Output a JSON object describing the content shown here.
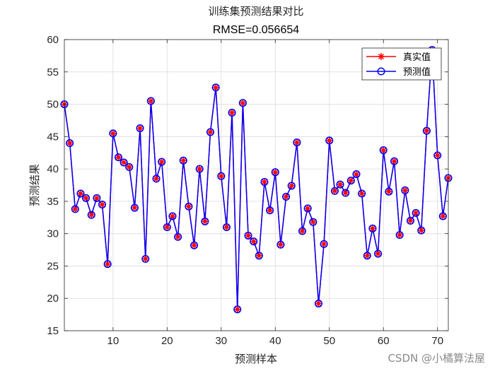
{
  "chart_data": {
    "type": "line",
    "title": "训练集预测结果对比",
    "subtitle": "RMSE=0.056654",
    "xlabel": "预测样本",
    "ylabel": "预测结果",
    "xlim": [
      1,
      72
    ],
    "ylim": [
      15,
      60
    ],
    "xticks": [
      10,
      20,
      30,
      40,
      50,
      60,
      70
    ],
    "yticks": [
      15,
      20,
      25,
      30,
      35,
      40,
      45,
      50,
      55,
      60
    ],
    "grid": true,
    "legend_position": "top-right",
    "x": [
      1,
      2,
      3,
      4,
      5,
      6,
      7,
      8,
      9,
      10,
      11,
      12,
      13,
      14,
      15,
      16,
      17,
      18,
      19,
      20,
      21,
      22,
      23,
      24,
      25,
      26,
      27,
      28,
      29,
      30,
      31,
      32,
      33,
      34,
      35,
      36,
      37,
      38,
      39,
      40,
      41,
      42,
      43,
      44,
      45,
      46,
      47,
      48,
      49,
      50,
      51,
      52,
      53,
      54,
      55,
      56,
      57,
      58,
      59,
      60,
      61,
      62,
      63,
      64,
      65,
      66,
      67,
      68,
      69,
      70,
      71,
      72
    ],
    "series": [
      {
        "name": "真实值",
        "color": "#ff0000",
        "marker": "asterisk",
        "values": [
          50.0,
          44.0,
          33.8,
          36.2,
          35.5,
          32.9,
          35.5,
          34.5,
          25.3,
          45.5,
          41.8,
          41.0,
          40.3,
          34.0,
          46.3,
          26.1,
          50.5,
          38.5,
          41.1,
          31.0,
          32.7,
          29.5,
          41.3,
          34.2,
          28.2,
          40.0,
          31.9,
          45.7,
          52.6,
          38.9,
          31.0,
          48.7,
          18.3,
          50.2,
          29.7,
          28.8,
          26.6,
          38.0,
          33.6,
          39.5,
          28.3,
          35.7,
          37.4,
          44.1,
          30.4,
          33.9,
          31.8,
          19.2,
          28.4,
          44.4,
          36.6,
          37.6,
          36.3,
          38.2,
          39.2,
          36.2,
          26.6,
          30.8,
          26.9,
          42.9,
          36.5,
          41.2,
          29.8,
          36.7,
          32.0,
          33.2,
          30.5,
          45.9,
          58.4,
          42.1,
          32.7,
          38.6
        ]
      },
      {
        "name": "预测值",
        "color": "#0000ff",
        "marker": "circle",
        "values": [
          50.0,
          44.0,
          33.8,
          36.2,
          35.5,
          32.9,
          35.5,
          34.5,
          25.3,
          45.5,
          41.8,
          41.0,
          40.3,
          34.0,
          46.3,
          26.1,
          50.5,
          38.5,
          41.1,
          31.0,
          32.7,
          29.5,
          41.3,
          34.2,
          28.2,
          40.0,
          31.9,
          45.7,
          52.6,
          38.9,
          31.0,
          48.7,
          18.3,
          50.2,
          29.7,
          28.8,
          26.6,
          38.0,
          33.6,
          39.5,
          28.3,
          35.7,
          37.4,
          44.1,
          30.4,
          33.9,
          31.8,
          19.2,
          28.4,
          44.4,
          36.6,
          37.6,
          36.3,
          38.2,
          39.2,
          36.2,
          26.6,
          30.8,
          26.9,
          42.9,
          36.5,
          41.2,
          29.8,
          36.7,
          32.0,
          33.2,
          30.5,
          45.9,
          58.4,
          42.1,
          32.7,
          38.6
        ]
      }
    ]
  },
  "watermark": "CSDN @小橘算法屋"
}
